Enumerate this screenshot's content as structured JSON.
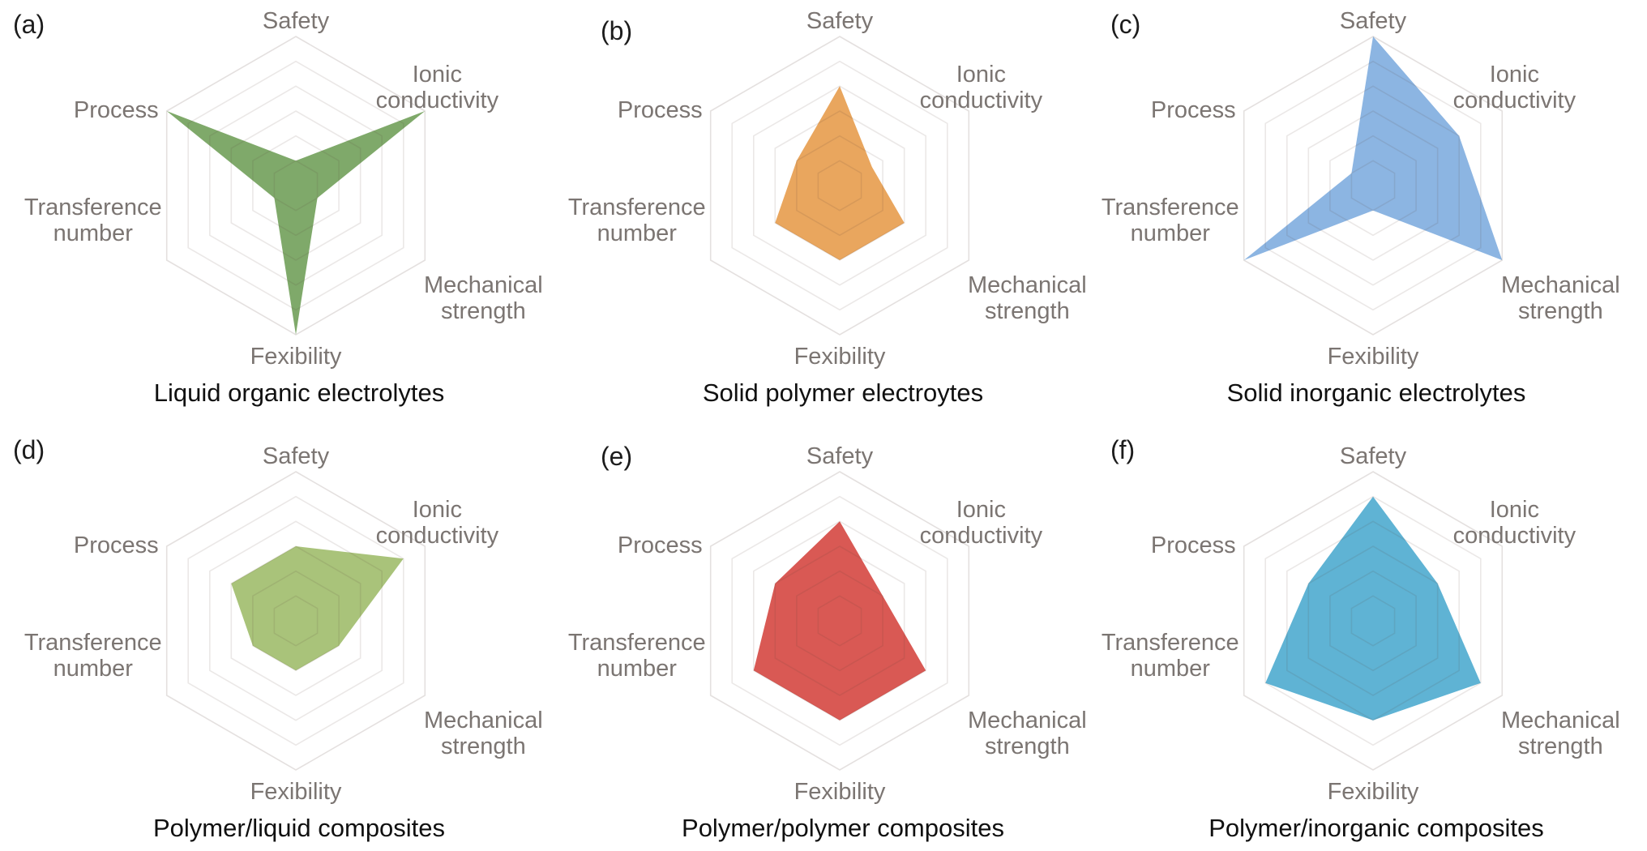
{
  "chart_data": {
    "type": "radar",
    "layout": {
      "rows": 2,
      "cols": 3,
      "grid": "hexagonal",
      "legend": "none"
    },
    "scale": {
      "min": 0,
      "max": 6,
      "gridline_count": 6,
      "gridlines_visible": true
    },
    "grid_color": "#ece5e2",
    "axis_label_color": "#7b7572",
    "title_color": "#101010",
    "axes": [
      {
        "id": "safety",
        "label": "Safety",
        "lines": [
          "Safety"
        ],
        "angle_deg": 90
      },
      {
        "id": "ionic-conductivity",
        "label": "Ionic conductivity",
        "lines": [
          "Ionic",
          "conductivity"
        ],
        "angle_deg": 30
      },
      {
        "id": "mechanical-strength",
        "label": "Mechanical strength",
        "lines": [
          "Mechanical",
          "strength"
        ],
        "angle_deg": -30
      },
      {
        "id": "fexibility",
        "label": "Fexibility",
        "lines": [
          "Fexibility"
        ],
        "angle_deg": -90
      },
      {
        "id": "transference-number",
        "label": "Transference number",
        "lines": [
          "Transference",
          "number"
        ],
        "angle_deg": 210
      },
      {
        "id": "process",
        "label": "Process",
        "lines": [
          "Process"
        ],
        "angle_deg": 150
      }
    ],
    "charts": [
      {
        "panel_label": "(a)",
        "title": "Liquid organic electrolytes",
        "color": "#7FA96A",
        "values": {
          "safety": 1,
          "ionic-conductivity": 6,
          "mechanical-strength": 1,
          "fexibility": 6,
          "transference-number": 1,
          "process": 6
        }
      },
      {
        "panel_label": "(b)",
        "title": "Solid polymer electroytes",
        "color": "#E9A65E",
        "values": {
          "safety": 4,
          "ionic-conductivity": 1.5,
          "mechanical-strength": 3,
          "fexibility": 3,
          "transference-number": 3,
          "process": 2
        }
      },
      {
        "panel_label": "(c)",
        "title": "Solid inorganic electrolytes",
        "color": "#8CB5E2",
        "values": {
          "safety": 6,
          "ionic-conductivity": 4,
          "mechanical-strength": 6,
          "fexibility": 1,
          "transference-number": 6,
          "process": 1
        }
      },
      {
        "panel_label": "(d)",
        "title": "Polymer/liquid composites",
        "color": "#A9C37A",
        "values": {
          "safety": 3,
          "ionic-conductivity": 5,
          "mechanical-strength": 2,
          "fexibility": 2,
          "transference-number": 2,
          "process": 3
        }
      },
      {
        "panel_label": "(e)",
        "title": "Polymer/polymer composites",
        "color": "#D95954",
        "values": {
          "safety": 4,
          "ionic-conductivity": 2,
          "mechanical-strength": 4,
          "fexibility": 4,
          "transference-number": 4,
          "process": 3
        }
      },
      {
        "panel_label": "(f)",
        "title": "Polymer/inorganic composites",
        "color": "#5FB3D4",
        "values": {
          "safety": 5,
          "ionic-conductivity": 3,
          "mechanical-strength": 5,
          "fexibility": 4,
          "transference-number": 5,
          "process": 3
        }
      }
    ]
  }
}
